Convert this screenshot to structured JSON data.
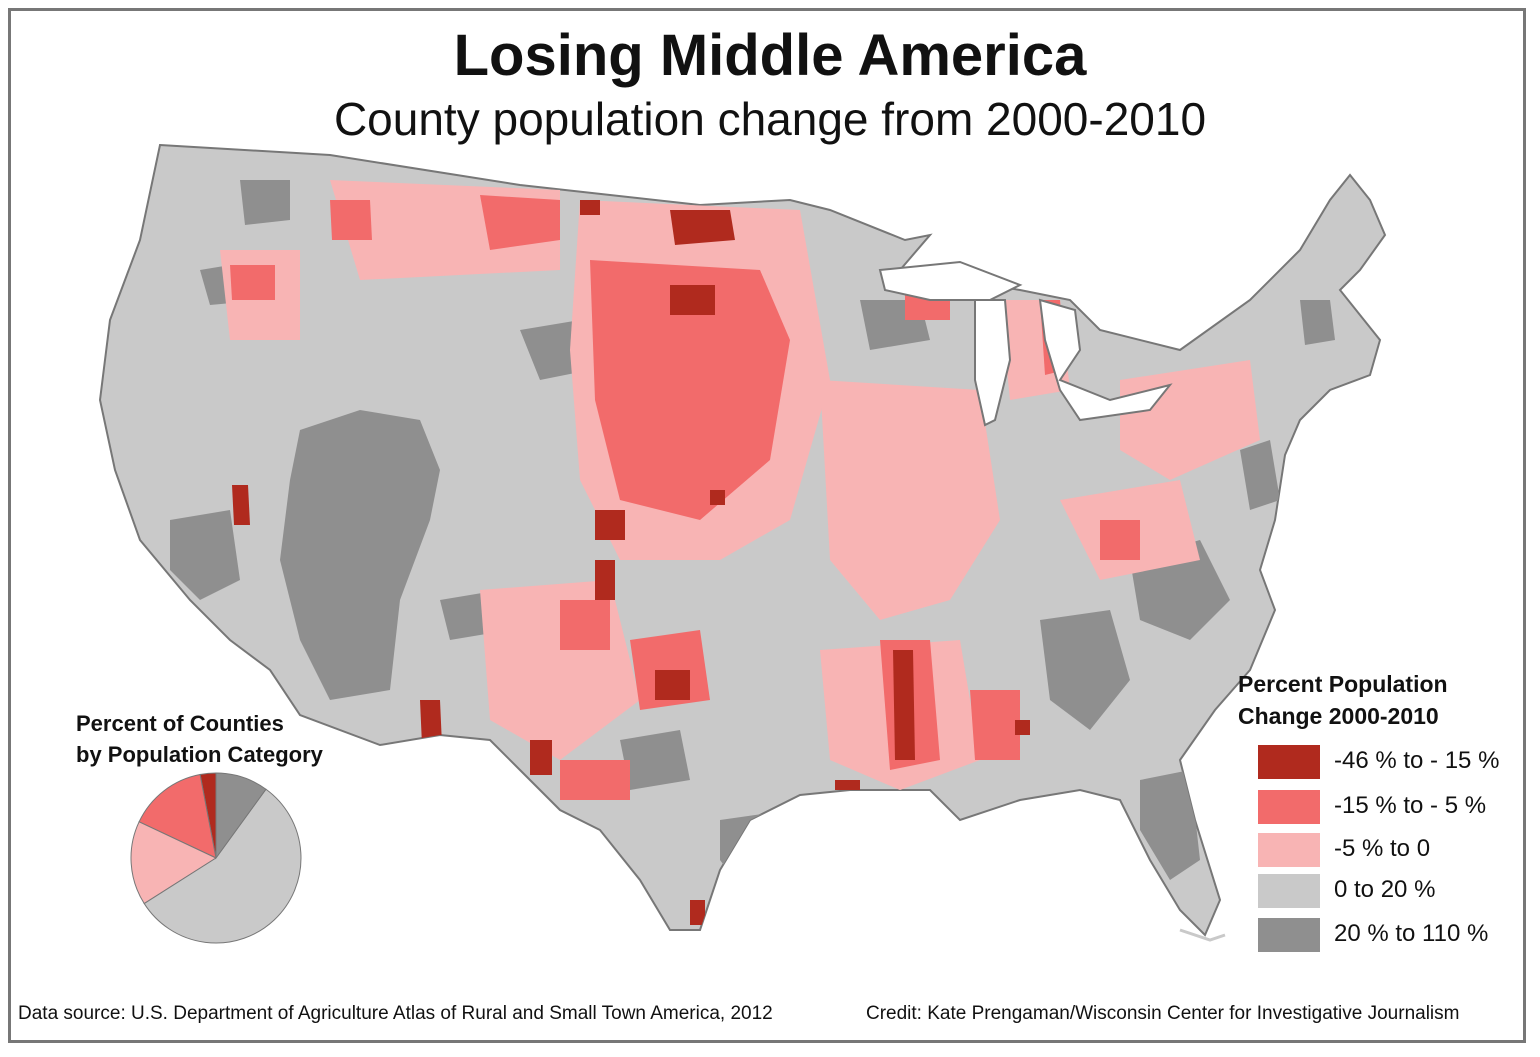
{
  "title": "Losing Middle America",
  "subtitle": "County population change from 2000-2010",
  "colors": {
    "cat1": "#b02a1e",
    "cat2": "#f26b6b",
    "cat3": "#f8b4b4",
    "cat4": "#c9c9c9",
    "cat5": "#8f8f8f",
    "border": "#777777"
  },
  "legend": {
    "title_line1": "Percent Population",
    "title_line2": "Change 2000-2010",
    "items": [
      {
        "label": "-46 % to - 15 %"
      },
      {
        "label": "-15 % to - 5 %"
      },
      {
        "label": "-5 % to 0"
      },
      {
        "label": "0 to 20 %"
      },
      {
        "label": "20 % to 110 %"
      }
    ]
  },
  "pie": {
    "title_line1": "Percent of Counties",
    "title_line2": "by Population Category",
    "shares": [
      {
        "category": "-46 % to - 15 %",
        "percent": 3
      },
      {
        "category": "-15 % to - 5 %",
        "percent": 15
      },
      {
        "category": "-5 % to 0",
        "percent": 16
      },
      {
        "category": "0 to 20 %",
        "percent": 56
      },
      {
        "category": "20 % to 110 %",
        "percent": 10
      }
    ]
  },
  "footer": {
    "source": "Data source: U.S. Department of Agriculture Atlas of Rural and Small Town America, 2012",
    "credit": "Credit: Kate Prengaman/Wisconsin Center for Investigative Journalism"
  }
}
